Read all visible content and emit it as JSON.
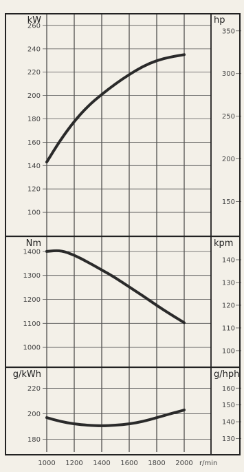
{
  "chart_data": [
    {
      "type": "line",
      "title": "",
      "x_label": "r/min",
      "x_ticks": [
        1000,
        1200,
        1400,
        1600,
        1800,
        2000
      ],
      "x_range": [
        1000,
        2000
      ],
      "y_label_left": "kW",
      "y_label_right": "hp",
      "y_ticks_left": [
        100,
        120,
        140,
        160,
        180,
        200,
        220,
        240,
        260
      ],
      "y_ticks_right": [
        150,
        200,
        250,
        300,
        350
      ],
      "y_range": [
        80,
        270
      ],
      "grid": true,
      "series": [
        {
          "name": "",
          "x": [
            1000,
            1100,
            1200,
            1300,
            1400,
            1500,
            1600,
            1700,
            1800,
            1900,
            2000
          ],
          "y": [
            143,
            162,
            178,
            191,
            201,
            210,
            218,
            225,
            230,
            233,
            235
          ]
        }
      ]
    },
    {
      "type": "line",
      "title": "",
      "x_label": "r/min",
      "x_ticks": [
        1000,
        1200,
        1400,
        1600,
        1800,
        2000
      ],
      "x_range": [
        1000,
        2000
      ],
      "y_label_left": "Nm",
      "y_label_right": "kpm",
      "y_ticks_left": [
        1000,
        1100,
        1200,
        1300,
        1400
      ],
      "y_ticks_right": [
        100,
        110,
        120,
        130,
        140
      ],
      "y_range": [
        920,
        1460
      ],
      "grid": true,
      "series": [
        {
          "name": "",
          "x": [
            1000,
            1100,
            1200,
            1300,
            1400,
            1500,
            1600,
            1700,
            1800,
            1900,
            2000
          ],
          "y": [
            1400,
            1405,
            1385,
            1355,
            1323,
            1290,
            1252,
            1215,
            1175,
            1138,
            1103
          ]
        }
      ]
    },
    {
      "type": "line",
      "title": "",
      "x_label": "r/min",
      "x_ticks": [
        1000,
        1200,
        1400,
        1600,
        1800,
        2000
      ],
      "x_range": [
        1000,
        2000
      ],
      "y_label_left": "g/kWh",
      "y_label_right": "g/hph",
      "y_ticks_left": [
        180,
        200,
        220
      ],
      "y_ticks_right": [
        130,
        140,
        150,
        160
      ],
      "y_range": [
        170,
        236
      ],
      "grid": true,
      "series": [
        {
          "name": "",
          "x": [
            1000,
            1100,
            1200,
            1300,
            1400,
            1500,
            1600,
            1700,
            1800,
            1900,
            2000
          ],
          "y": [
            197,
            194,
            192,
            191,
            190.5,
            191,
            192,
            194,
            197,
            200,
            203
          ]
        }
      ]
    }
  ]
}
